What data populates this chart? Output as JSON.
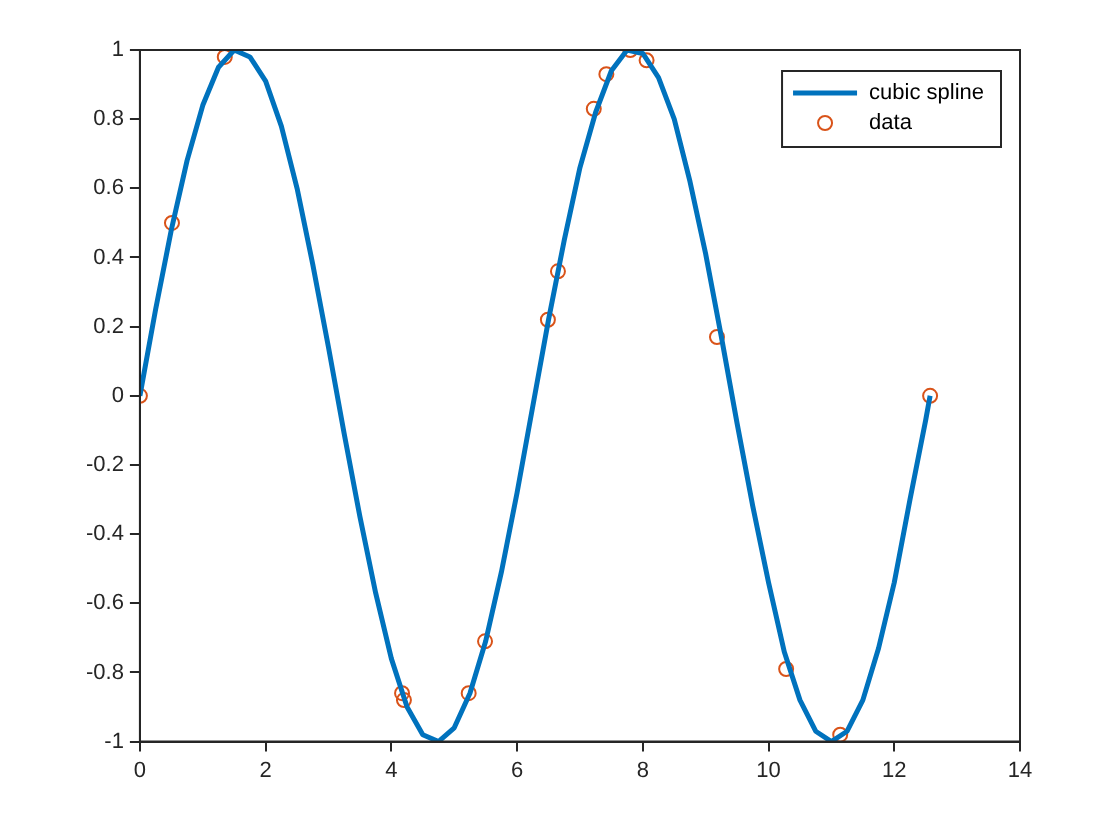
{
  "chart_data": {
    "type": "line",
    "xlim": [
      0,
      14
    ],
    "xticks": [
      0,
      2,
      4,
      6,
      8,
      10,
      12,
      14
    ],
    "ylim": [
      -1,
      1
    ],
    "yticks": [
      -1,
      -0.8,
      -0.6,
      -0.4,
      -0.2,
      0,
      0.2,
      0.4,
      0.6,
      0.8,
      1
    ],
    "grid": false,
    "legend": "top right",
    "series": [
      {
        "name": "cubic spline",
        "color": "#0072bd",
        "marker": "none",
        "line_style": "solid",
        "x": [
          0,
          0.25,
          0.5,
          0.75,
          1,
          1.25,
          1.5,
          1.75,
          2,
          2.25,
          2.5,
          2.75,
          3,
          3.25,
          3.5,
          3.75,
          4,
          4.25,
          4.5,
          4.75,
          5,
          5.25,
          5.5,
          5.75,
          6,
          6.25,
          6.5,
          6.75,
          7,
          7.25,
          7.5,
          7.75,
          8,
          8.25,
          8.5,
          8.75,
          9,
          9.25,
          9.5,
          9.75,
          10,
          10.25,
          10.5,
          10.75,
          11,
          11.25,
          11.5,
          11.75,
          12,
          12.25,
          12.5,
          12.57
        ],
        "values": [
          0,
          0.25,
          0.48,
          0.68,
          0.84,
          0.95,
          1,
          0.98,
          0.91,
          0.78,
          0.6,
          0.38,
          0.14,
          -0.11,
          -0.35,
          -0.57,
          -0.76,
          -0.9,
          -0.98,
          -1,
          -0.96,
          -0.86,
          -0.71,
          -0.51,
          -0.28,
          -0.03,
          0.22,
          0.45,
          0.66,
          0.82,
          0.94,
          1,
          0.99,
          0.92,
          0.8,
          0.62,
          0.41,
          0.17,
          -0.08,
          -0.32,
          -0.54,
          -0.74,
          -0.88,
          -0.97,
          -1,
          -0.97,
          -0.88,
          -0.73,
          -0.54,
          -0.3,
          -0.07,
          0
        ]
      },
      {
        "name": "data",
        "type": "scatter",
        "color": "#d95319",
        "marker": "circle",
        "x": [
          0,
          0.51,
          1.35,
          4.17,
          4.2,
          5.23,
          5.49,
          6.49,
          6.65,
          7.22,
          7.42,
          7.8,
          8.06,
          9.18,
          10.28,
          11.14,
          12.57
        ],
        "values": [
          0,
          0.5,
          0.98,
          -0.86,
          -0.88,
          -0.86,
          -0.71,
          0.22,
          0.36,
          0.83,
          0.93,
          1,
          0.97,
          0.17,
          -0.79,
          -0.98,
          0
        ]
      }
    ]
  }
}
